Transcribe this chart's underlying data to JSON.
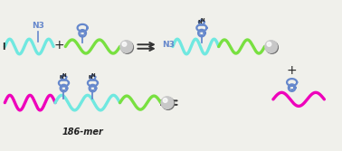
{
  "fig_width": 3.78,
  "fig_height": 1.67,
  "dpi": 100,
  "bg_color": "#f0f0eb",
  "cyan_color": "#70E8E0",
  "green_color": "#78E040",
  "magenta_color": "#EE00BB",
  "blue_color": "#6688CC",
  "dark_color": "#222222",
  "label_186": "186-mer",
  "label_N3_top": "N3",
  "label_N3_right": "N3",
  "label_I": "I",
  "strand_lw": 2.4,
  "wave_amp": 0.13,
  "wave_freq": 2.2
}
